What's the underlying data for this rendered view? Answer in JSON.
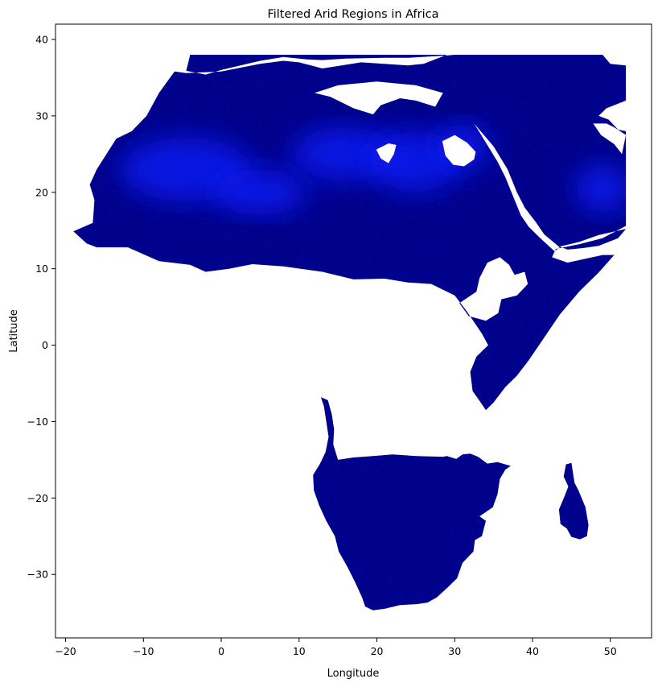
{
  "title": "Filtered Arid Regions in Africa",
  "xlabel": "Longitude",
  "ylabel": "Latitude",
  "x_ticks": [
    {
      "value": -20,
      "label": "−20"
    },
    {
      "value": -10,
      "label": "−10"
    },
    {
      "value": 0,
      "label": "0"
    },
    {
      "value": 10,
      "label": "10"
    },
    {
      "value": 20,
      "label": "20"
    },
    {
      "value": 30,
      "label": "30"
    },
    {
      "value": 40,
      "label": "40"
    },
    {
      "value": 50,
      "label": "50"
    }
  ],
  "y_ticks": [
    {
      "value": 40,
      "label": "40"
    },
    {
      "value": 30,
      "label": "30"
    },
    {
      "value": 20,
      "label": "20"
    },
    {
      "value": 10,
      "label": "10"
    },
    {
      "value": 0,
      "label": "0"
    },
    {
      "value": -10,
      "label": "−10"
    },
    {
      "value": -20,
      "label": "−20"
    },
    {
      "value": -30,
      "label": "−30"
    }
  ],
  "xlim": [
    -21.3,
    55.3
  ],
  "ylim": [
    -38.3,
    42.0
  ],
  "colors": {
    "land": "#00008b",
    "hot": "#0a1cff",
    "background": "#ffffff"
  },
  "map_data": {
    "projection": "plate carree (longitude / latitude degrees)",
    "regions": [
      {
        "name": "north-africa-and-sahel",
        "polygon": [
          [
            -19.0,
            14.9
          ],
          [
            -17.3,
            13.3
          ],
          [
            -16.0,
            12.8
          ],
          [
            -12.0,
            12.8
          ],
          [
            -8.0,
            11.0
          ],
          [
            -4.0,
            10.5
          ],
          [
            -2.0,
            9.6
          ],
          [
            1.0,
            10.0
          ],
          [
            4.0,
            10.6
          ],
          [
            8.0,
            10.3
          ],
          [
            13.0,
            9.6
          ],
          [
            17.0,
            8.6
          ],
          [
            21.0,
            8.7
          ],
          [
            24.0,
            8.2
          ],
          [
            27.0,
            8.0
          ],
          [
            30.0,
            6.5
          ],
          [
            31.5,
            4.5
          ],
          [
            33.5,
            1.5
          ],
          [
            34.3,
            0.0
          ],
          [
            32.8,
            -1.5
          ],
          [
            32.0,
            -3.5
          ],
          [
            32.3,
            -6.0
          ],
          [
            33.0,
            -7.0
          ],
          [
            34.0,
            -8.5
          ],
          [
            35.0,
            -7.5
          ],
          [
            36.5,
            -5.5
          ],
          [
            38.0,
            -4.0
          ],
          [
            39.5,
            -2.0
          ],
          [
            41.5,
            1.0
          ],
          [
            43.5,
            4.0
          ],
          [
            46.0,
            7.0
          ],
          [
            48.5,
            9.5
          ],
          [
            50.5,
            11.8
          ],
          [
            49.0,
            11.8
          ],
          [
            44.5,
            10.8
          ],
          [
            42.5,
            11.5
          ],
          [
            43.0,
            12.6
          ],
          [
            46.0,
            13.2
          ],
          [
            49.0,
            14.0
          ],
          [
            52.0,
            15.6
          ],
          [
            52.0,
            28.0
          ],
          [
            51.0,
            28.2
          ],
          [
            49.8,
            29.5
          ],
          [
            48.5,
            30.0
          ],
          [
            49.5,
            31.0
          ],
          [
            52.0,
            32.0
          ],
          [
            52.0,
            36.6
          ],
          [
            50.0,
            36.8
          ],
          [
            49.0,
            38.0
          ],
          [
            29.0,
            38.0
          ],
          [
            26.0,
            36.8
          ],
          [
            24.0,
            36.6
          ],
          [
            18.0,
            37.0
          ],
          [
            13.0,
            36.2
          ],
          [
            10.0,
            37.0
          ],
          [
            8.0,
            37.2
          ],
          [
            5.0,
            36.8
          ],
          [
            0.0,
            35.8
          ],
          [
            -4.5,
            35.6
          ],
          [
            -6.0,
            35.8
          ],
          [
            -8.0,
            33.0
          ],
          [
            -9.6,
            30.0
          ],
          [
            -11.5,
            28.0
          ],
          [
            -13.5,
            27.0
          ],
          [
            -16.0,
            23.0
          ],
          [
            -16.9,
            21.0
          ],
          [
            -16.3,
            19.0
          ],
          [
            -16.5,
            16.0
          ]
        ],
        "holes": [
          [
            [
              30.6,
              5.5
            ],
            [
              31.8,
              3.8
            ],
            [
              34.0,
              3.2
            ],
            [
              35.6,
              4.2
            ],
            [
              36.0,
              6.0
            ],
            [
              38.0,
              6.5
            ],
            [
              39.4,
              8.0
            ],
            [
              39.0,
              9.6
            ],
            [
              37.7,
              9.2
            ],
            [
              37.0,
              10.5
            ],
            [
              35.8,
              11.5
            ],
            [
              34.2,
              10.8
            ],
            [
              33.2,
              8.8
            ],
            [
              32.8,
              7.0
            ]
          ],
          [
            [
              -4.0,
              38.0
            ],
            [
              -4.5,
              35.9
            ],
            [
              -2.0,
              35.4
            ],
            [
              0.0,
              36.0
            ],
            [
              5.0,
              37.2
            ],
            [
              8.0,
              37.7
            ],
            [
              11.0,
              37.4
            ],
            [
              13.0,
              37.3
            ],
            [
              16.0,
              37.5
            ],
            [
              21.0,
              37.6
            ],
            [
              24.0,
              37.6
            ],
            [
              29.0,
              37.9
            ],
            [
              30.0,
              38.0
            ]
          ],
          [
            [
              12.0,
              33.0
            ],
            [
              14.0,
              32.5
            ],
            [
              17.0,
              31.0
            ],
            [
              19.5,
              30.2
            ],
            [
              20.5,
              31.4
            ],
            [
              23.0,
              32.3
            ],
            [
              25.0,
              32.0
            ],
            [
              27.5,
              31.2
            ],
            [
              28.5,
              33.0
            ],
            [
              25.0,
              34.0
            ],
            [
              20.0,
              34.5
            ],
            [
              15.0,
              34.0
            ]
          ],
          [
            [
              33.5,
              27.8
            ],
            [
              35.0,
              26.0
            ],
            [
              36.8,
              23.0
            ],
            [
              38.0,
              20.0
            ],
            [
              39.0,
              18.0
            ],
            [
              40.5,
              16.0
            ],
            [
              41.5,
              14.5
            ],
            [
              43.5,
              12.8
            ],
            [
              42.8,
              12.3
            ],
            [
              41.0,
              14.0
            ],
            [
              39.5,
              15.5
            ],
            [
              38.5,
              17.0
            ],
            [
              37.5,
              19.5
            ],
            [
              36.5,
              22.0
            ],
            [
              35.5,
              24.0
            ],
            [
              34.0,
              26.5
            ],
            [
              32.5,
              29.0
            ]
          ],
          [
            [
              43.5,
              12.9
            ],
            [
              44.5,
              12.5
            ],
            [
              46.5,
              12.7
            ],
            [
              48.5,
              13.0
            ],
            [
              51.0,
              14.0
            ],
            [
              52.0,
              15.2
            ],
            [
              48.5,
              14.4
            ],
            [
              46.0,
              13.5
            ]
          ],
          [
            [
              47.8,
              29.0
            ],
            [
              48.8,
              27.5
            ],
            [
              50.5,
              26.3
            ],
            [
              51.5,
              25.0
            ],
            [
              52.0,
              27.5
            ],
            [
              50.5,
              28.5
            ],
            [
              49.5,
              29.0
            ]
          ],
          [
            [
              19.9,
              25.6
            ],
            [
              20.5,
              24.4
            ],
            [
              21.5,
              23.8
            ],
            [
              22.2,
              25.0
            ],
            [
              22.5,
              26.2
            ],
            [
              21.5,
              26.4
            ]
          ],
          [
            [
              28.4,
              26.7
            ],
            [
              28.8,
              24.8
            ],
            [
              29.8,
              23.6
            ],
            [
              31.2,
              23.4
            ],
            [
              32.5,
              24.3
            ],
            [
              32.7,
              25.3
            ],
            [
              31.6,
              26.5
            ],
            [
              30.0,
              27.5
            ]
          ]
        ]
      },
      {
        "name": "southern-africa",
        "polygon": [
          [
            12.8,
            -6.8
          ],
          [
            13.2,
            -8.0
          ],
          [
            13.5,
            -10.0
          ],
          [
            13.8,
            -12.0
          ],
          [
            13.4,
            -14.0
          ],
          [
            12.7,
            -15.5
          ],
          [
            11.8,
            -17.0
          ],
          [
            11.9,
            -19.0
          ],
          [
            12.6,
            -21.0
          ],
          [
            13.5,
            -23.0
          ],
          [
            14.6,
            -25.0
          ],
          [
            15.1,
            -27.0
          ],
          [
            16.2,
            -29.0
          ],
          [
            17.2,
            -31.0
          ],
          [
            18.1,
            -33.0
          ],
          [
            18.5,
            -34.2
          ],
          [
            19.5,
            -34.7
          ],
          [
            21.0,
            -34.5
          ],
          [
            23.0,
            -34.0
          ],
          [
            25.0,
            -33.9
          ],
          [
            26.5,
            -33.7
          ],
          [
            27.7,
            -33.0
          ],
          [
            29.0,
            -31.8
          ],
          [
            30.3,
            -30.5
          ],
          [
            31.0,
            -28.5
          ],
          [
            32.4,
            -27.0
          ],
          [
            32.6,
            -25.5
          ],
          [
            33.5,
            -25.0
          ],
          [
            34.0,
            -23.0
          ],
          [
            33.2,
            -22.4
          ],
          [
            34.9,
            -21.2
          ],
          [
            35.5,
            -19.5
          ],
          [
            35.8,
            -17.5
          ],
          [
            36.5,
            -16.3
          ],
          [
            37.2,
            -15.8
          ],
          [
            35.5,
            -15.3
          ],
          [
            34.2,
            -15.5
          ],
          [
            33.0,
            -14.6
          ],
          [
            32.0,
            -14.2
          ],
          [
            31.0,
            -14.3
          ],
          [
            30.2,
            -14.9
          ],
          [
            29.0,
            -14.5
          ],
          [
            28.5,
            -14.6
          ],
          [
            25.0,
            -14.5
          ],
          [
            22.0,
            -14.3
          ],
          [
            19.5,
            -14.5
          ],
          [
            17.0,
            -14.7
          ],
          [
            15.0,
            -15.0
          ],
          [
            14.4,
            -13.0
          ],
          [
            14.5,
            -11.0
          ],
          [
            14.2,
            -9.0
          ],
          [
            13.7,
            -7.2
          ]
        ],
        "holes": []
      },
      {
        "name": "madagascar",
        "polygon": [
          [
            44.3,
            -15.6
          ],
          [
            45.0,
            -15.4
          ],
          [
            45.4,
            -18.0
          ],
          [
            45.9,
            -19.0
          ],
          [
            46.8,
            -21.2
          ],
          [
            47.2,
            -23.5
          ],
          [
            47.0,
            -25.0
          ],
          [
            46.1,
            -25.4
          ],
          [
            45.0,
            -25.1
          ],
          [
            44.4,
            -24.0
          ],
          [
            43.6,
            -23.4
          ],
          [
            43.4,
            -21.5
          ],
          [
            44.1,
            -19.8
          ],
          [
            44.6,
            -18.5
          ],
          [
            44.0,
            -17.2
          ]
        ],
        "holes": []
      }
    ],
    "hotspots": [
      {
        "center": [
          -4.5,
          23.0
        ],
        "radius": [
          8.5,
          4.2
        ]
      },
      {
        "center": [
          16.0,
          25.0
        ],
        "radius": [
          7.0,
          3.5
        ]
      },
      {
        "center": [
          25.0,
          24.0
        ],
        "radius": [
          6.0,
          4.0
        ]
      },
      {
        "center": [
          31.0,
          26.0
        ],
        "radius": [
          3.5,
          3.0
        ]
      },
      {
        "center": [
          49.0,
          20.5
        ],
        "radius": [
          3.5,
          3.2
        ]
      },
      {
        "center": [
          5.0,
          20.0
        ],
        "radius": [
          6.0,
          3.0
        ]
      }
    ]
  }
}
